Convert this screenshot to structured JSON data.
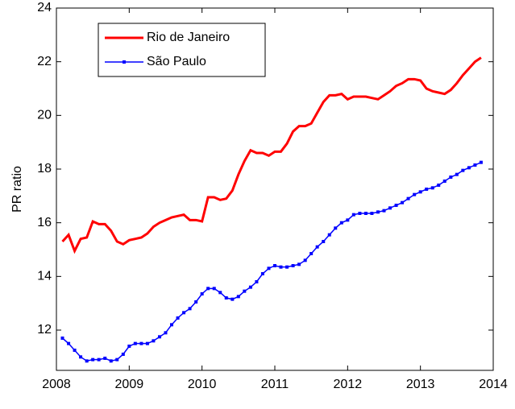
{
  "chart_data": {
    "type": "line",
    "y_label": "PR ratio",
    "x": [
      2008.083,
      2008.167,
      2008.25,
      2008.333,
      2008.417,
      2008.5,
      2008.583,
      2008.667,
      2008.75,
      2008.833,
      2008.917,
      2009,
      2009.083,
      2009.167,
      2009.25,
      2009.333,
      2009.417,
      2009.5,
      2009.583,
      2009.667,
      2009.75,
      2009.833,
      2009.917,
      2010,
      2010.083,
      2010.167,
      2010.25,
      2010.333,
      2010.417,
      2010.5,
      2010.583,
      2010.667,
      2010.75,
      2010.833,
      2010.917,
      2011,
      2011.083,
      2011.167,
      2011.25,
      2011.333,
      2011.417,
      2011.5,
      2011.583,
      2011.667,
      2011.75,
      2011.833,
      2011.917,
      2012,
      2012.083,
      2012.167,
      2012.25,
      2012.333,
      2012.417,
      2012.5,
      2012.583,
      2012.667,
      2012.75,
      2012.833,
      2012.917,
      2013,
      2013.083,
      2013.167,
      2013.25,
      2013.333,
      2013.417,
      2013.5,
      2013.583,
      2013.667,
      2013.75,
      2013.833
    ],
    "series": [
      {
        "name": "Rio de Janeiro",
        "color": "#ff0000",
        "marker": false,
        "values": [
          15.3,
          15.55,
          14.95,
          15.4,
          15.45,
          16.05,
          15.95,
          15.95,
          15.7,
          15.3,
          15.2,
          15.35,
          15.4,
          15.45,
          15.6,
          15.85,
          16.0,
          16.1,
          16.2,
          16.25,
          16.3,
          16.1,
          16.1,
          16.05,
          16.95,
          16.95,
          16.85,
          16.9,
          17.2,
          17.8,
          18.3,
          18.7,
          18.6,
          18.6,
          18.5,
          18.65,
          18.65,
          18.95,
          19.4,
          19.6,
          19.6,
          19.7,
          20.1,
          20.5,
          20.75,
          20.75,
          20.8,
          20.6,
          20.7,
          20.7,
          20.7,
          20.65,
          20.6,
          20.75,
          20.9,
          21.1,
          21.2,
          21.35,
          21.35,
          21.3,
          21.0,
          20.9,
          20.85,
          20.8,
          20.95,
          21.2,
          21.5,
          21.75,
          22.0,
          22.15
        ]
      },
      {
        "name": "São Paulo",
        "color": "#0000ff",
        "marker": true,
        "values": [
          11.7,
          11.5,
          11.25,
          11.0,
          10.85,
          10.9,
          10.9,
          10.95,
          10.85,
          10.9,
          11.1,
          11.4,
          11.5,
          11.5,
          11.5,
          11.6,
          11.75,
          11.9,
          12.2,
          12.45,
          12.65,
          12.8,
          13.05,
          13.35,
          13.55,
          13.55,
          13.4,
          13.2,
          13.15,
          13.25,
          13.45,
          13.6,
          13.8,
          14.1,
          14.3,
          14.4,
          14.35,
          14.35,
          14.4,
          14.45,
          14.6,
          14.85,
          15.1,
          15.3,
          15.55,
          15.8,
          16.0,
          16.1,
          16.3,
          16.35,
          16.35,
          16.35,
          16.4,
          16.45,
          16.55,
          16.65,
          16.75,
          16.9,
          17.05,
          17.15,
          17.25,
          17.3,
          17.4,
          17.55,
          17.7,
          17.8,
          17.95,
          18.05,
          18.15,
          18.25
        ]
      }
    ],
    "xlim": [
      2008,
      2014
    ],
    "xticks": [
      2008,
      2009,
      2010,
      2011,
      2012,
      2013,
      2014
    ],
    "ylim": [
      10.5,
      24
    ],
    "yticks": [
      12,
      14,
      16,
      18,
      20,
      22,
      24
    ],
    "grid": false,
    "legend": "upper left"
  }
}
